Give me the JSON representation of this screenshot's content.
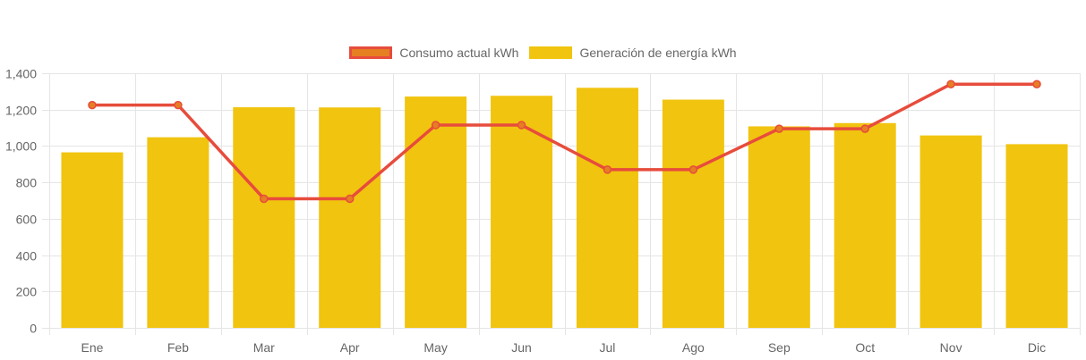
{
  "chart_data": {
    "type": "bar",
    "categories": [
      "Ene",
      "Feb",
      "Mar",
      "Apr",
      "May",
      "Jun",
      "Jul",
      "Ago",
      "Sep",
      "Oct",
      "Nov",
      "Dic"
    ],
    "series": [
      {
        "name": "Consumo actual kWh",
        "type": "line",
        "values": [
          1225,
          1225,
          710,
          710,
          1115,
          1115,
          870,
          870,
          1095,
          1095,
          1340,
          1340
        ]
      },
      {
        "name": "Generación de energía kWh",
        "type": "bar",
        "values": [
          965,
          1048,
          1213,
          1212,
          1272,
          1276,
          1320,
          1255,
          1108,
          1126,
          1058,
          1010
        ]
      }
    ],
    "ylim": [
      0,
      1400
    ],
    "yticks": [
      "0",
      "200",
      "400",
      "600",
      "800",
      "1,000",
      "1,200",
      "1,400"
    ],
    "grid": true,
    "legend": "top",
    "colors": {
      "line_stroke": "#e74c3c",
      "line_point": "#e67e22",
      "bar": "#f1c40f",
      "grid": "#e5e5e5"
    }
  }
}
